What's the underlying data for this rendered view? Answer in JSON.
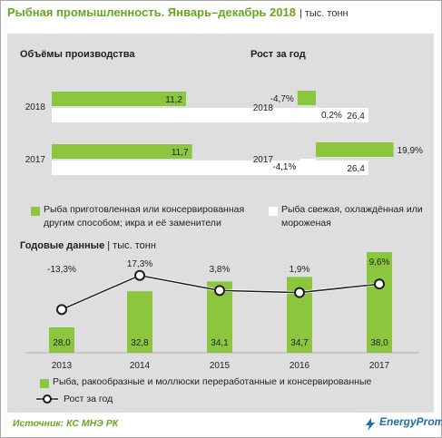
{
  "header": {
    "title": "Рыбная промышленность. Январь–декабрь 2018",
    "unit": "| тыс. тонн"
  },
  "sections": {
    "production_title": "Объёмы производства",
    "growth_title": "Рост за год",
    "annual_title": "Годовые данные",
    "annual_unit": "| тыс. тонн"
  },
  "legend_top": {
    "green_label": "Рыба приготовленная или консервированная другим способом; икра и её заменители",
    "white_label": "Рыба свежая, охлаждённая или мороженая"
  },
  "legend_bottom": {
    "bar_label": "Рыба, ракообразные и моллюски переработанные и консервированные",
    "line_label": "Рост за год"
  },
  "footer": {
    "source": "Источник: КС МНЭ РК",
    "brand": "EnergyProm"
  },
  "colors": {
    "green": "#8cc63f",
    "white": "#ffffff",
    "panel": "#dedede",
    "title_green": "#6aa51f",
    "brand_blue": "#1b6ea8"
  },
  "chart_data": [
    {
      "type": "bar",
      "orientation": "horizontal",
      "title": "Объёмы производства",
      "categories": [
        "2018",
        "2017"
      ],
      "series": [
        {
          "name": "Рыба приготовленная или консервированная другим способом; икра и её заменители",
          "color": "#8cc63f",
          "values": [
            11.2,
            11.7
          ],
          "labels": [
            "11,2",
            "11,7"
          ]
        },
        {
          "name": "Рыба свежая, охлаждённая или мороженая",
          "color": "#ffffff",
          "values": [
            26.4,
            26.4
          ],
          "labels": [
            "26,4",
            "26,4"
          ]
        }
      ],
      "xlim": [
        0,
        28
      ]
    },
    {
      "type": "bar",
      "orientation": "horizontal",
      "title": "Рост за год",
      "categories": [
        "2018",
        "2017"
      ],
      "series": [
        {
          "name": "Рыба приготовленная или консервированная другим способом; икра и её заменители",
          "color": "#8cc63f",
          "values": [
            -4.7,
            19.9
          ],
          "labels": [
            "-4,7%",
            "19,9%"
          ]
        },
        {
          "name": "Рыба свежая, охлаждённая или мороженая",
          "color": "#ffffff",
          "values": [
            0.2,
            -4.1
          ],
          "labels": [
            "0,2%",
            "-4,1%"
          ]
        }
      ],
      "xlim": [
        -5,
        20
      ]
    },
    {
      "type": "bar",
      "title": "Годовые данные",
      "categories": [
        "2013",
        "2014",
        "2015",
        "2016",
        "2017"
      ],
      "series": [
        {
          "name": "Рыба, ракообразные и моллюски переработанные и консервированные",
          "color": "#8cc63f",
          "values": [
            28.0,
            32.8,
            34.1,
            34.7,
            38.0
          ],
          "labels": [
            "28,0",
            "32,8",
            "34,1",
            "34,7",
            "38,0"
          ]
        },
        {
          "name": "Рост за год",
          "type": "line",
          "values": [
            -13.3,
            17.3,
            3.8,
            1.9,
            9.6
          ],
          "labels": [
            "-13,3%",
            "17,3%",
            "3,8%",
            "1,9%",
            "9,6%"
          ]
        }
      ]
    }
  ]
}
